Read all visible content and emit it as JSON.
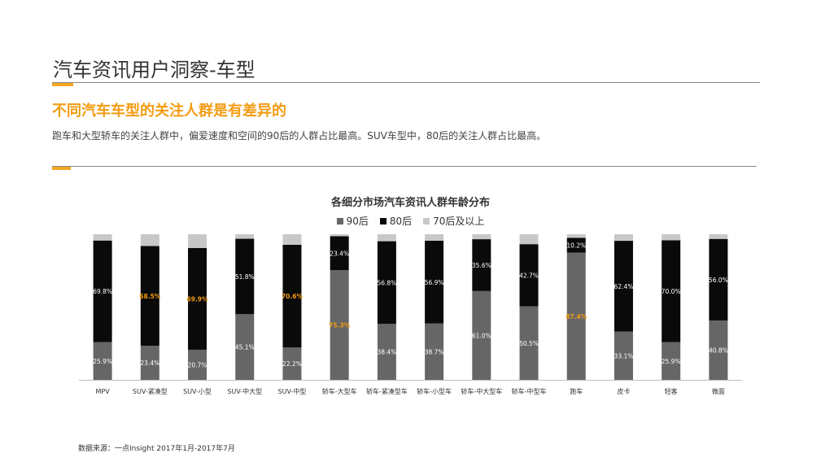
{
  "page": {
    "title": "汽车资讯用户洞察-车型",
    "headline": "不同汽车车型的关注人群是有差异的",
    "description": "跑车和大型轿车的关注人群中，偏爱速度和空间的90后的人群占比最高。SUV车型中，80后的关注人群占比最高。",
    "source": "数据来源：一点Insight   2017年1月-2017年7月"
  },
  "colors": {
    "series_90": "#666666",
    "series_80": "#0a0a0a",
    "series_70": "#c8c8c8",
    "accent": "#f5a623",
    "headline": "#f39c12",
    "highlight_label": "#f39c12"
  },
  "chart_data": {
    "type": "bar",
    "stacked": true,
    "title": "各细分市场汽车资讯人群年龄分布",
    "legend_position": "top",
    "categories": [
      "MPV",
      "SUV-紧凑型",
      "SUV-小型",
      "SUV-中大型",
      "SUV-中型",
      "轿车-大型车",
      "轿车-紧凑型车",
      "轿车-小型车",
      "轿车-中大型车",
      "轿车-中型车",
      "跑车",
      "皮卡",
      "轻客",
      "微面"
    ],
    "ylim": [
      0,
      100
    ],
    "series": [
      {
        "name": "90后",
        "values": [
          25.9,
          23.4,
          20.7,
          45.1,
          22.2,
          75.3,
          38.4,
          38.7,
          61.0,
          50.5,
          87.4,
          33.1,
          25.9,
          40.8
        ],
        "labels": [
          "25.9%",
          "23.4%",
          "20.7%",
          "45.1%",
          "22.2%",
          "75.3%",
          "38.4%",
          "38.7%",
          "61.0%",
          "50.5%",
          "87.4%",
          "33.1%",
          "25.9%",
          "40.8%"
        ]
      },
      {
        "name": "80后",
        "values": [
          69.8,
          68.5,
          69.9,
          51.8,
          70.6,
          23.4,
          56.8,
          56.9,
          35.6,
          42.7,
          10.2,
          62.4,
          70.0,
          56.0
        ],
        "labels": [
          "69.8%",
          "68.5%",
          "69.9%",
          "51.8%",
          "70.6%",
          "23.4%",
          "56.8%",
          "56.9%",
          "35.6%",
          "42.7%",
          "10.2%",
          "62.4%",
          "70.0%",
          "56.0%"
        ]
      },
      {
        "name": "70后及以上",
        "values": [
          4.3,
          8.1,
          9.4,
          3.1,
          7.2,
          1.3,
          4.8,
          4.4,
          3.4,
          6.8,
          2.4,
          4.5,
          4.1,
          3.2
        ],
        "labels": []
      }
    ],
    "highlighted_labels": [
      {
        "category": "SUV-紧凑型",
        "series": "80后"
      },
      {
        "category": "SUV-小型",
        "series": "80后"
      },
      {
        "category": "SUV-中型",
        "series": "80后"
      },
      {
        "category": "轿车-大型车",
        "series": "90后"
      },
      {
        "category": "跑车",
        "series": "90后"
      }
    ]
  }
}
